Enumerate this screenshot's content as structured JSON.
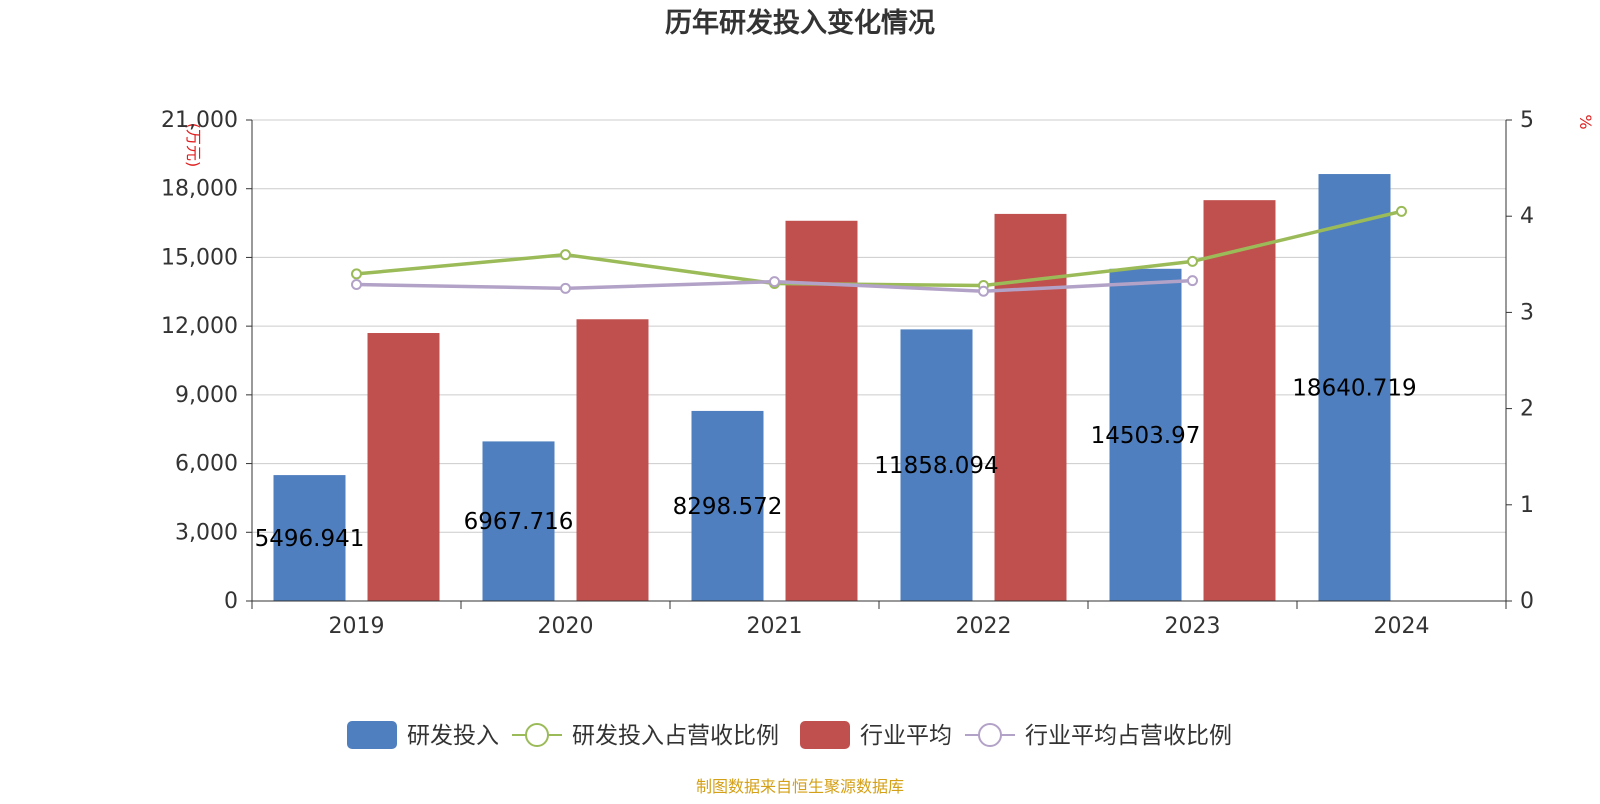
{
  "chart_data": {
    "type": "bar",
    "title": "历年研发投入变化情况",
    "left_axis_unit": "(万元)",
    "right_axis_unit": "%",
    "categories": [
      "2019",
      "2020",
      "2021",
      "2022",
      "2023",
      "2024"
    ],
    "left_axis": {
      "min": 0,
      "max": 21000,
      "ticks": [
        0,
        3000,
        6000,
        9000,
        12000,
        15000,
        18000,
        21000
      ],
      "tick_labels": [
        "0",
        "3,000",
        "6,000",
        "9,000",
        "12,000",
        "15,000",
        "18,000",
        "21,000"
      ]
    },
    "right_axis": {
      "min": 0,
      "max": 5,
      "ticks": [
        0,
        1,
        2,
        3,
        4,
        5
      ],
      "tick_labels": [
        "0",
        "1",
        "2",
        "3",
        "4",
        "5"
      ]
    },
    "grid": true,
    "series": [
      {
        "name": "研发投入",
        "type": "bar",
        "axis": "left",
        "color": "#4f7fbe",
        "values": [
          5496.941,
          6967.716,
          8298.572,
          11858.094,
          14503.97,
          18640.719
        ],
        "data_labels": [
          "5496.941",
          "6967.716",
          "8298.572",
          "11858.094",
          "14503.97",
          "18640.719"
        ]
      },
      {
        "name": "研发投入占营收比例",
        "type": "line",
        "axis": "right",
        "color": "#9bbb59",
        "values": [
          3.4,
          3.6,
          3.3,
          3.28,
          3.53,
          4.05
        ]
      },
      {
        "name": "行业平均",
        "type": "bar",
        "axis": "left",
        "color": "#c0504d",
        "values": [
          11700,
          12300,
          16600,
          16900,
          17500,
          null
        ]
      },
      {
        "name": "行业平均占营收比例",
        "type": "line",
        "axis": "right",
        "color": "#b3a2c7",
        "values": [
          3.29,
          3.25,
          3.32,
          3.22,
          3.33,
          null
        ]
      }
    ],
    "legend_position": "bottom-center",
    "source_note": "制图数据来自恒生聚源数据库"
  }
}
